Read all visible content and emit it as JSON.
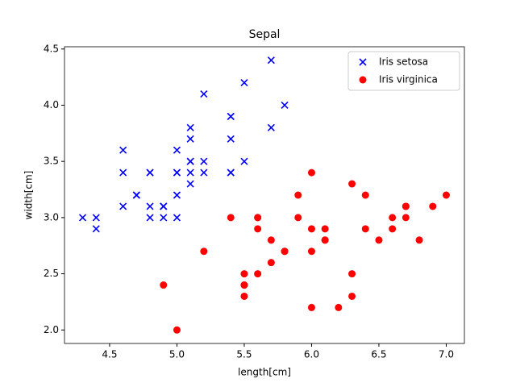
{
  "chart_data": {
    "type": "scatter",
    "title": "Sepal",
    "x_label": "length[cm]",
    "y_label": "width[cm]",
    "xlim": [
      4.165,
      7.135
    ],
    "ylim": [
      1.88,
      4.52
    ],
    "xticks": [
      {
        "value": 4.5,
        "label": "4.5"
      },
      {
        "value": 5.0,
        "label": "5.0"
      },
      {
        "value": 5.5,
        "label": "5.5"
      },
      {
        "value": 6.0,
        "label": "6.0"
      },
      {
        "value": 6.5,
        "label": "6.5"
      },
      {
        "value": 7.0,
        "label": "7.0"
      }
    ],
    "yticks": [
      {
        "value": 2.0,
        "label": "2.0"
      },
      {
        "value": 2.5,
        "label": "2.5"
      },
      {
        "value": 3.0,
        "label": "3.0"
      },
      {
        "value": 3.5,
        "label": "3.5"
      },
      {
        "value": 4.0,
        "label": "4.0"
      },
      {
        "value": 4.5,
        "label": "4.5"
      }
    ],
    "legend": "upper right",
    "series": [
      {
        "name": "Iris setosa",
        "color": "#0000ff",
        "marker": "x",
        "x": [
          5.1,
          4.9,
          4.7,
          4.6,
          5.0,
          5.4,
          4.6,
          5.0,
          4.4,
          4.9,
          5.4,
          4.8,
          4.8,
          4.3,
          5.8,
          5.7,
          5.4,
          5.1,
          5.7,
          5.1,
          5.4,
          5.1,
          4.6,
          5.1,
          4.8,
          5.0,
          5.0,
          5.2,
          5.2,
          4.7,
          4.8,
          5.4,
          5.2,
          5.5,
          4.9,
          5.0,
          5.5,
          4.9,
          4.4,
          5.1
        ],
        "values": [
          3.5,
          3.0,
          3.2,
          3.1,
          3.6,
          3.9,
          3.4,
          3.4,
          2.9,
          3.1,
          3.7,
          3.4,
          3.0,
          3.0,
          4.0,
          4.4,
          3.9,
          3.5,
          3.8,
          3.8,
          3.4,
          3.7,
          3.6,
          3.3,
          3.4,
          3.0,
          3.4,
          3.5,
          3.4,
          3.2,
          3.1,
          3.4,
          4.1,
          4.2,
          3.1,
          3.2,
          3.5,
          3.1,
          3.0,
          3.4
        ]
      },
      {
        "name": "Iris virginica",
        "color": "#ff0000",
        "marker": "o",
        "x": [
          7.0,
          6.4,
          6.9,
          5.5,
          6.5,
          5.7,
          6.3,
          4.9,
          6.6,
          5.2,
          5.0,
          5.9,
          6.0,
          6.1,
          5.6,
          6.7,
          5.6,
          5.8,
          6.2,
          5.6,
          5.9,
          6.1,
          6.3,
          6.1,
          6.4,
          6.6,
          6.8,
          6.7,
          6.0,
          5.7,
          5.5,
          5.5,
          5.8,
          6.0,
          5.4,
          6.0,
          6.7,
          6.3,
          5.6,
          5.5
        ],
        "values": [
          3.2,
          3.2,
          3.1,
          2.3,
          2.8,
          2.8,
          3.3,
          2.4,
          2.9,
          2.7,
          2.0,
          3.0,
          2.2,
          2.9,
          2.9,
          3.1,
          3.0,
          2.7,
          2.2,
          2.5,
          3.2,
          2.8,
          2.5,
          2.8,
          2.9,
          3.0,
          2.8,
          3.0,
          2.9,
          2.6,
          2.4,
          2.4,
          2.7,
          2.7,
          3.0,
          3.4,
          3.1,
          2.3,
          3.0,
          2.5
        ]
      }
    ]
  }
}
